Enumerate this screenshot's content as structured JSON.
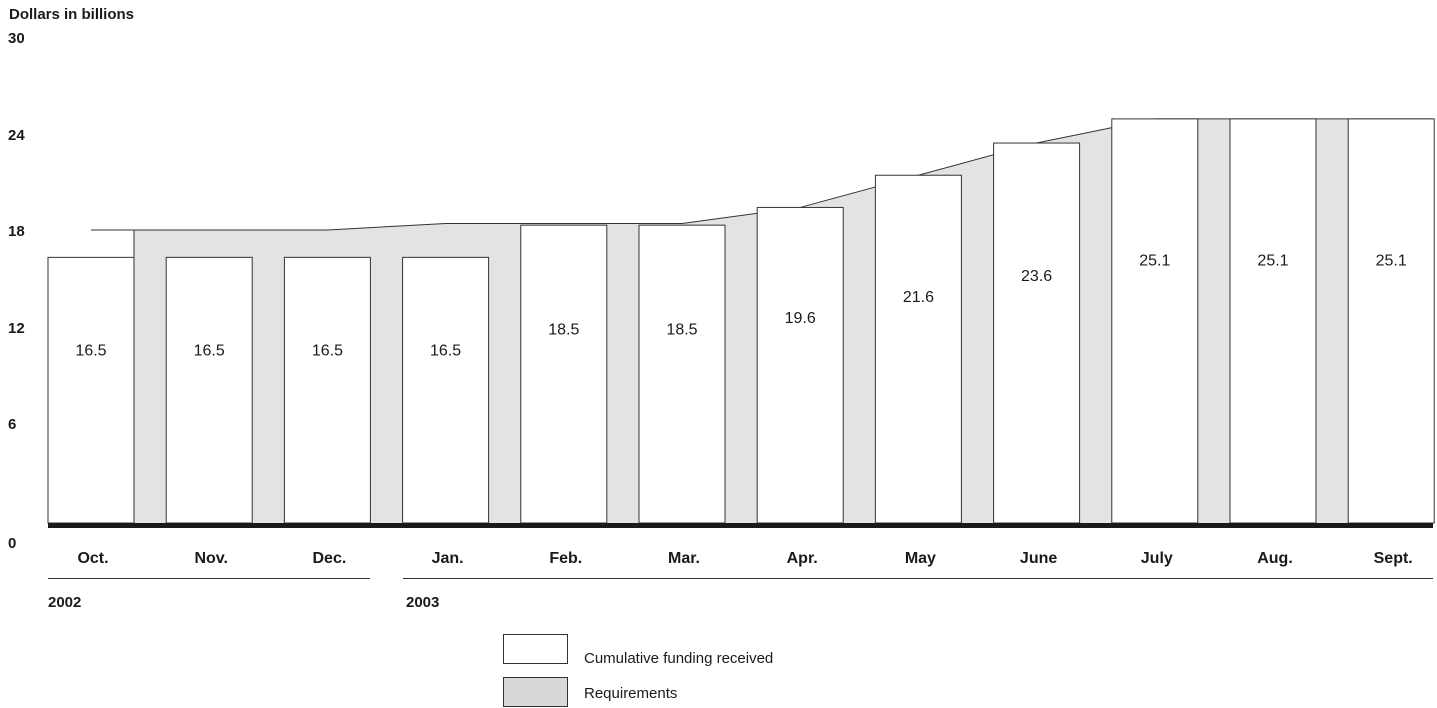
{
  "chart_data": {
    "type": "bar",
    "ylabel": "Dollars in billions",
    "ylim": [
      0,
      30
    ],
    "yticks": [
      "0",
      "6",
      "12",
      "18",
      "24",
      "30"
    ],
    "categories": [
      "Oct.",
      "Nov.",
      "Dec.",
      "Jan.",
      "Feb.",
      "Mar.",
      "Apr.",
      "May",
      "June",
      "July",
      "Aug.",
      "Sept."
    ],
    "series": [
      {
        "name": "Cumulative funding received",
        "values": [
          16.5,
          16.5,
          16.5,
          16.5,
          18.5,
          18.5,
          19.6,
          21.6,
          23.6,
          25.1,
          25.1,
          25.1
        ],
        "labels": [
          "16.5",
          "16.5",
          "16.5",
          "16.5",
          "18.5",
          "18.5",
          "19.6",
          "21.6",
          "23.6",
          "25.1",
          "25.1",
          "25.1"
        ],
        "color": "#ffffff"
      },
      {
        "name": "Requirements",
        "values": [
          18.2,
          18.2,
          18.2,
          18.6,
          18.6,
          18.6,
          19.6,
          21.6,
          23.6,
          25.1,
          25.1,
          25.1
        ],
        "color": "#e2e3e4"
      }
    ],
    "year_groups": [
      {
        "label": "2002",
        "first": 0,
        "last": 2
      },
      {
        "label": "2003",
        "first": 3,
        "last": 11
      }
    ],
    "legend": [
      {
        "label": "Cumulative funding received",
        "color": "#ffffff"
      },
      {
        "label": "Requirements",
        "color": "#d7d8d9"
      }
    ]
  }
}
